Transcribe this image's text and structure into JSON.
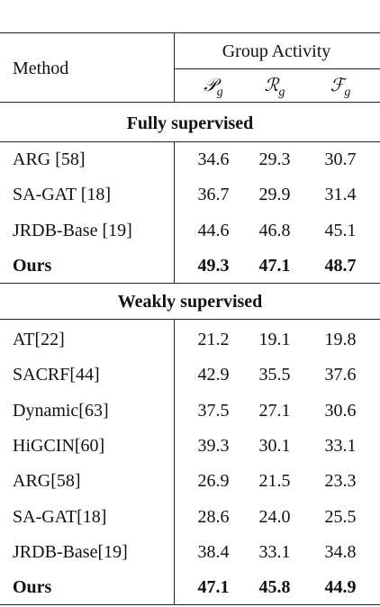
{
  "table": {
    "header": {
      "method": "Method",
      "group": "Group Activity",
      "metrics": [
        {
          "symbol": "𝒫",
          "sub": "g"
        },
        {
          "symbol": "ℛ",
          "sub": "g"
        },
        {
          "symbol": "ℱ",
          "sub": "g"
        }
      ]
    },
    "sections": [
      {
        "title": "Fully supervised",
        "rows": [
          [
            "ARG [58]",
            "34.6",
            "29.3",
            "30.7"
          ],
          [
            "SA-GAT [18]",
            "36.7",
            "29.9",
            "31.4"
          ],
          [
            "JRDB-Base [19]",
            "44.6",
            "46.8",
            "45.1"
          ],
          [
            "Ours",
            "49.3",
            "47.1",
            "48.7"
          ]
        ]
      },
      {
        "title": "Weakly supervised",
        "rows": [
          [
            "AT[22]",
            "21.2",
            "19.1",
            "19.8"
          ],
          [
            "SACRF[44]",
            "42.9",
            "35.5",
            "37.6"
          ],
          [
            "Dynamic[63]",
            "37.5",
            "27.1",
            "30.6"
          ],
          [
            "HiGCIN[60]",
            "39.3",
            "30.1",
            "33.1"
          ],
          [
            "ARG[58]",
            "26.9",
            "21.5",
            "23.3"
          ],
          [
            "SA-GAT[18]",
            "28.6",
            "24.0",
            "25.5"
          ],
          [
            "JRDB-Base[19]",
            "38.4",
            "33.1",
            "34.8"
          ],
          [
            "Ours",
            "47.1",
            "45.8",
            "44.9"
          ]
        ]
      }
    ]
  }
}
